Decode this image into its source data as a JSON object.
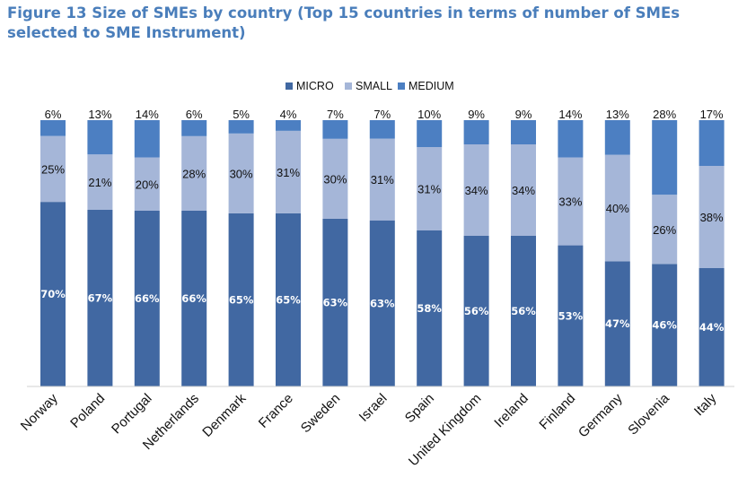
{
  "title": "Figure 13 Size of SMEs by country (Top 15 countries in terms of number of SMEs selected to SME Instrument)",
  "chart_data": {
    "type": "bar",
    "stacked": true,
    "title": "",
    "xlabel": "",
    "ylabel": "",
    "ylim": [
      0,
      100
    ],
    "grid": false,
    "legend_position": "top-center",
    "categories": [
      "Norway",
      "Poland",
      "Portugal",
      "Netherlands",
      "Denmark",
      "France",
      "Sweden",
      "Israel",
      "Spain",
      "United Kingdom",
      "Ireland",
      "Finland",
      "Germany",
      "Slovenia",
      "Italy"
    ],
    "series": [
      {
        "name": "MICRO",
        "color": "#4168a2",
        "values": [
          70,
          67,
          66,
          66,
          65,
          65,
          63,
          63,
          58,
          56,
          56,
          53,
          47,
          46,
          44
        ]
      },
      {
        "name": "SMALL",
        "color": "#a5b6d8",
        "values": [
          25,
          21,
          20,
          28,
          30,
          31,
          30,
          31,
          31,
          34,
          34,
          33,
          40,
          26,
          38
        ]
      },
      {
        "name": "MEDIUM",
        "color": "#4c7fc2",
        "values": [
          6,
          13,
          14,
          6,
          5,
          4,
          7,
          7,
          10,
          9,
          9,
          14,
          13,
          28,
          17
        ]
      }
    ],
    "label_suffix": "%"
  }
}
